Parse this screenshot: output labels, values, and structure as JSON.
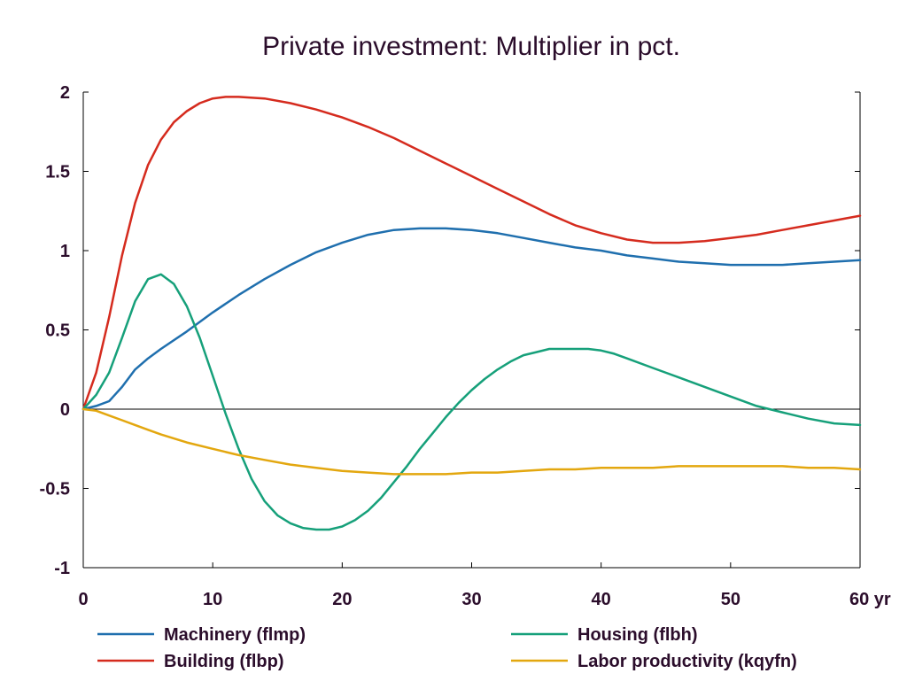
{
  "chart_data": {
    "type": "line",
    "title": "Private investment: Multiplier in pct.",
    "x_unit_label": "yr",
    "xlim": [
      0,
      60
    ],
    "ylim": [
      -1,
      2
    ],
    "x_ticks": [
      0,
      10,
      20,
      30,
      40,
      50,
      60
    ],
    "y_ticks": [
      -1,
      -0.5,
      0,
      0.5,
      1,
      1.5,
      2
    ],
    "y_tick_labels": [
      "-1",
      "-0.5",
      "0",
      "0.5",
      "1",
      "1.5",
      "2"
    ],
    "x_tick_labels": [
      "0",
      "10",
      "20",
      "30",
      "40",
      "50",
      "60 yr"
    ],
    "zero_line": true,
    "grid": false,
    "legend_position": "bottom",
    "series": [
      {
        "name": "Machinery (flmp)",
        "color": "#1f6fae",
        "x": [
          0,
          1,
          2,
          3,
          4,
          5,
          6,
          8,
          10,
          12,
          14,
          16,
          18,
          20,
          22,
          24,
          26,
          28,
          30,
          32,
          34,
          36,
          38,
          40,
          42,
          44,
          46,
          48,
          50,
          52,
          54,
          56,
          58,
          60
        ],
        "y": [
          0,
          0.02,
          0.05,
          0.14,
          0.25,
          0.32,
          0.38,
          0.49,
          0.61,
          0.72,
          0.82,
          0.91,
          0.99,
          1.05,
          1.1,
          1.13,
          1.14,
          1.14,
          1.13,
          1.11,
          1.08,
          1.05,
          1.02,
          1.0,
          0.97,
          0.95,
          0.93,
          0.92,
          0.91,
          0.91,
          0.91,
          0.92,
          0.93,
          0.94
        ]
      },
      {
        "name": "Building (flbp)",
        "color": "#d52b1e",
        "x": [
          0,
          1,
          2,
          3,
          4,
          5,
          6,
          7,
          8,
          9,
          10,
          11,
          12,
          14,
          16,
          18,
          20,
          22,
          24,
          26,
          28,
          30,
          32,
          34,
          36,
          38,
          40,
          42,
          44,
          46,
          48,
          50,
          52,
          54,
          56,
          58,
          60
        ],
        "y": [
          0,
          0.23,
          0.58,
          0.97,
          1.3,
          1.54,
          1.7,
          1.81,
          1.88,
          1.93,
          1.96,
          1.97,
          1.97,
          1.96,
          1.93,
          1.89,
          1.84,
          1.78,
          1.71,
          1.63,
          1.55,
          1.47,
          1.39,
          1.31,
          1.23,
          1.16,
          1.11,
          1.07,
          1.05,
          1.05,
          1.06,
          1.08,
          1.1,
          1.13,
          1.16,
          1.19,
          1.22
        ]
      },
      {
        "name": "Housing (flbh)",
        "color": "#16a07a",
        "x": [
          0,
          1,
          2,
          3,
          4,
          5,
          6,
          7,
          8,
          9,
          10,
          11,
          12,
          13,
          14,
          15,
          16,
          17,
          18,
          19,
          20,
          21,
          22,
          23,
          24,
          25,
          26,
          27,
          28,
          29,
          30,
          31,
          32,
          33,
          34,
          35,
          36,
          37,
          38,
          39,
          40,
          41,
          42,
          44,
          46,
          48,
          50,
          52,
          54,
          56,
          58,
          60
        ],
        "y": [
          0,
          0.09,
          0.23,
          0.45,
          0.68,
          0.82,
          0.85,
          0.79,
          0.65,
          0.45,
          0.21,
          -0.03,
          -0.25,
          -0.44,
          -0.58,
          -0.67,
          -0.72,
          -0.75,
          -0.76,
          -0.76,
          -0.74,
          -0.7,
          -0.64,
          -0.56,
          -0.46,
          -0.36,
          -0.25,
          -0.15,
          -0.05,
          0.04,
          0.12,
          0.19,
          0.25,
          0.3,
          0.34,
          0.36,
          0.38,
          0.38,
          0.38,
          0.38,
          0.37,
          0.35,
          0.32,
          0.26,
          0.2,
          0.14,
          0.08,
          0.02,
          -0.02,
          -0.06,
          -0.09,
          -0.1
        ]
      },
      {
        "name": "Labor productivity (kqyfn)",
        "color": "#e3a70f",
        "x": [
          0,
          1,
          2,
          3,
          4,
          5,
          6,
          8,
          10,
          12,
          14,
          16,
          18,
          20,
          22,
          24,
          26,
          28,
          30,
          32,
          34,
          36,
          38,
          40,
          42,
          44,
          46,
          48,
          50,
          52,
          54,
          56,
          58,
          60
        ],
        "y": [
          0,
          -0.01,
          -0.04,
          -0.07,
          -0.1,
          -0.13,
          -0.16,
          -0.21,
          -0.25,
          -0.29,
          -0.32,
          -0.35,
          -0.37,
          -0.39,
          -0.4,
          -0.41,
          -0.41,
          -0.41,
          -0.4,
          -0.4,
          -0.39,
          -0.38,
          -0.38,
          -0.37,
          -0.37,
          -0.37,
          -0.36,
          -0.36,
          -0.36,
          -0.36,
          -0.36,
          -0.37,
          -0.37,
          -0.38
        ]
      }
    ]
  }
}
